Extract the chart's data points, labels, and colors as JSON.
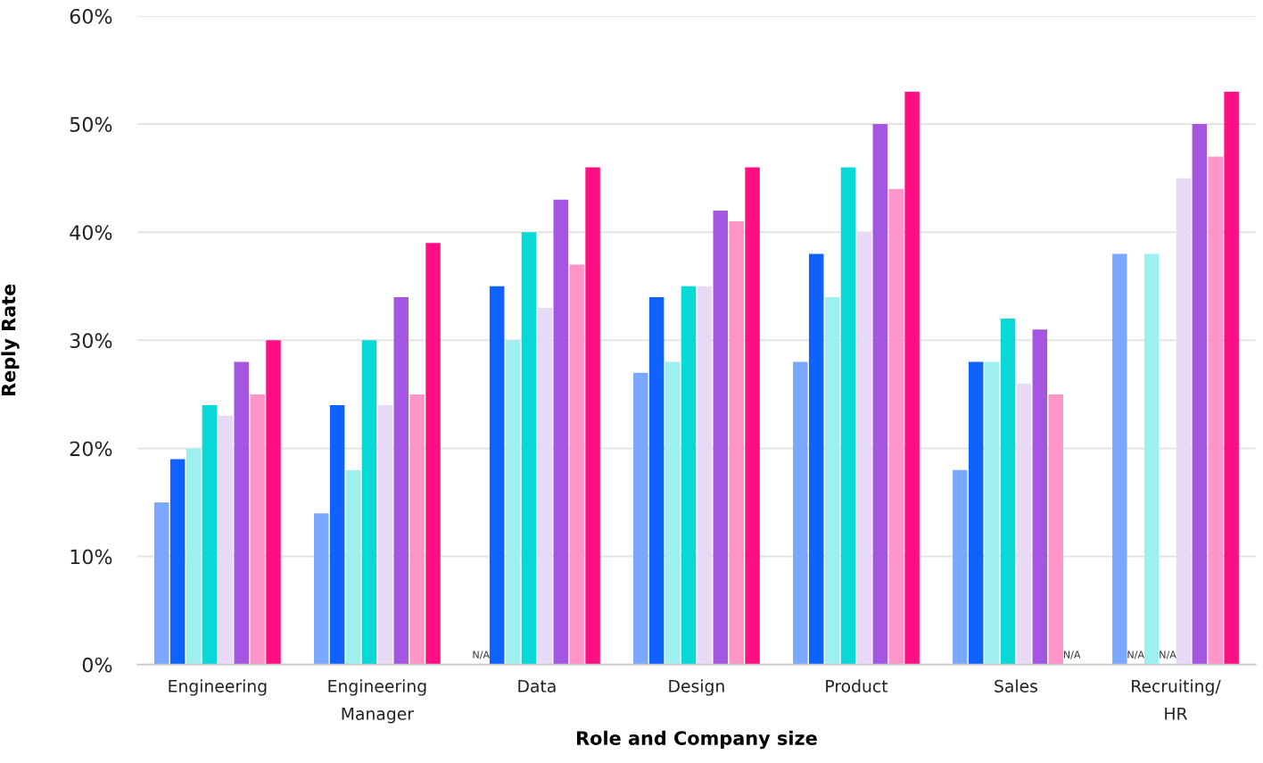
{
  "chart_data": {
    "type": "bar",
    "xlabel": "Role and Company size",
    "ylabel": "Reply Rate",
    "categories": [
      "Engineering",
      "Engineering\nManager",
      "Data",
      "Design",
      "Product",
      "Sales",
      "Recruiting/\nHR"
    ],
    "series": [
      {
        "color": "#7aa7ff",
        "values": [
          15,
          14,
          null,
          27,
          28,
          18,
          38
        ],
        "value_labels": [
          null,
          null,
          "N/A",
          null,
          null,
          null,
          null
        ]
      },
      {
        "color": "#0f62fe",
        "values": [
          19,
          24,
          35,
          34,
          38,
          28,
          null
        ],
        "value_labels": [
          null,
          null,
          null,
          null,
          null,
          null,
          "N/A"
        ]
      },
      {
        "color": "#9ef0f0",
        "values": [
          20,
          18,
          30,
          28,
          34,
          28,
          38
        ]
      },
      {
        "color": "#08d9d6",
        "values": [
          24,
          30,
          40,
          35,
          46,
          32,
          null
        ],
        "value_labels": [
          null,
          null,
          null,
          null,
          null,
          null,
          "N/A"
        ]
      },
      {
        "color": "#e8daf7",
        "values": [
          23,
          24,
          33,
          35,
          40,
          26,
          45
        ]
      },
      {
        "color": "#a556e0",
        "values": [
          28,
          34,
          43,
          42,
          50,
          31,
          50
        ]
      },
      {
        "color": "#ff94c8",
        "values": [
          25,
          25,
          37,
          41,
          44,
          25,
          47
        ]
      },
      {
        "color": "#ff0f82",
        "values": [
          30,
          39,
          46,
          46,
          53,
          null,
          53
        ],
        "value_labels": [
          null,
          null,
          null,
          null,
          null,
          "N/A",
          null
        ]
      }
    ],
    "ylim": [
      0,
      60
    ],
    "yticks": [
      {
        "value": 0,
        "label": "0%"
      },
      {
        "value": 10,
        "label": "10%"
      },
      {
        "value": 20,
        "label": "20%"
      },
      {
        "value": 30,
        "label": "30%"
      },
      {
        "value": 40,
        "label": "40%"
      },
      {
        "value": 50,
        "label": "50%"
      },
      {
        "value": 60,
        "label": "60%"
      }
    ],
    "grid": "y",
    "legend": false
  }
}
